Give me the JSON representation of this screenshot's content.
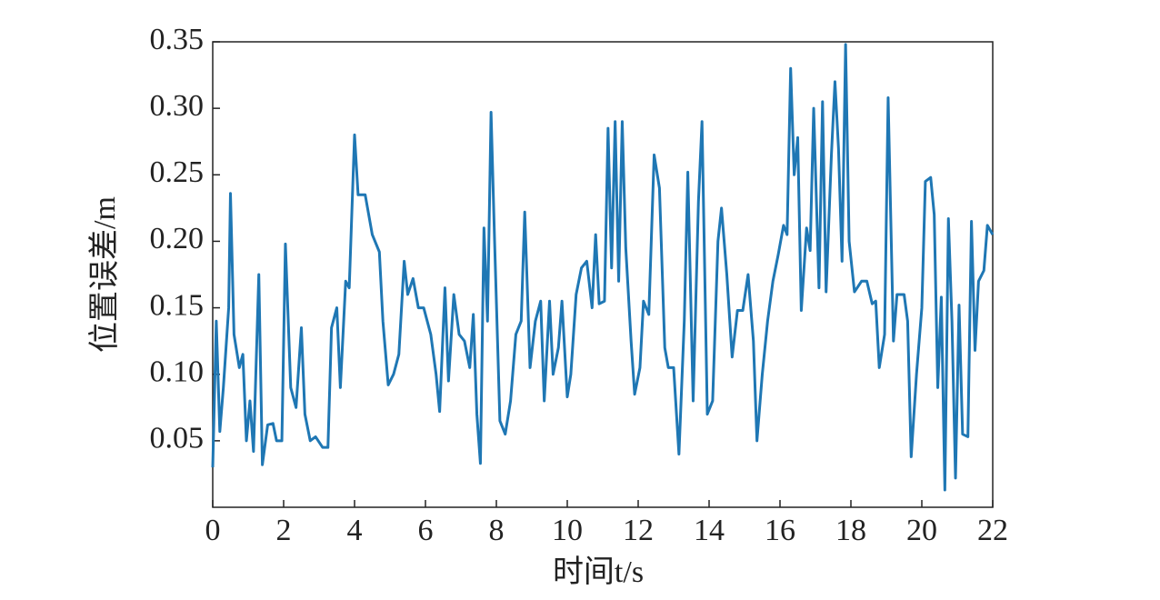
{
  "chart_data": {
    "type": "line",
    "x_label": "时间t/s",
    "y_label": "位置误差/m",
    "xlim": [
      0,
      22
    ],
    "xticks": [
      0,
      2,
      4,
      6,
      8,
      10,
      12,
      14,
      16,
      18,
      20,
      22
    ],
    "ylim": [
      0,
      0.35
    ],
    "yticks": [
      0.05,
      {
        "value": 0.1,
        "label": "0.10"
      },
      0.15,
      {
        "value": 0.2,
        "label": "0.20"
      },
      0.25,
      {
        "value": 0.3,
        "label": "0.30"
      },
      0.35
    ],
    "series": [
      {
        "color": "#1f77b4",
        "x": [
          0.0,
          0.1,
          0.2,
          0.3,
          0.45,
          0.5,
          0.6,
          0.75,
          0.85,
          0.95,
          1.05,
          1.15,
          1.3,
          1.4,
          1.55,
          1.7,
          1.8,
          1.95,
          2.05,
          2.2,
          2.35,
          2.5,
          2.6,
          2.75,
          2.9,
          3.1,
          3.25,
          3.35,
          3.5,
          3.6,
          3.75,
          3.85,
          4.0,
          4.1,
          4.3,
          4.5,
          4.7,
          4.8,
          4.95,
          5.1,
          5.25,
          5.4,
          5.5,
          5.65,
          5.8,
          5.95,
          6.15,
          6.3,
          6.4,
          6.55,
          6.65,
          6.8,
          6.95,
          7.1,
          7.25,
          7.35,
          7.45,
          7.55,
          7.65,
          7.75,
          7.85,
          7.95,
          8.1,
          8.25,
          8.4,
          8.55,
          8.7,
          8.8,
          8.95,
          9.1,
          9.25,
          9.35,
          9.5,
          9.6,
          9.75,
          9.85,
          10.0,
          10.1,
          10.25,
          10.4,
          10.55,
          10.7,
          10.8,
          10.9,
          11.05,
          11.15,
          11.25,
          11.35,
          11.45,
          11.55,
          11.65,
          11.8,
          11.9,
          12.05,
          12.15,
          12.3,
          12.45,
          12.6,
          12.75,
          12.85,
          13.0,
          13.15,
          13.3,
          13.4,
          13.55,
          13.7,
          13.8,
          13.95,
          14.1,
          14.25,
          14.35,
          14.5,
          14.65,
          14.8,
          14.95,
          15.1,
          15.25,
          15.35,
          15.5,
          15.65,
          15.8,
          15.95,
          16.1,
          16.2,
          16.3,
          16.4,
          16.5,
          16.6,
          16.75,
          16.85,
          16.95,
          17.1,
          17.2,
          17.3,
          17.45,
          17.55,
          17.65,
          17.75,
          17.85,
          17.95,
          18.1,
          18.3,
          18.45,
          18.6,
          18.7,
          18.8,
          18.95,
          19.05,
          19.2,
          19.3,
          19.5,
          19.6,
          19.7,
          19.85,
          20.0,
          20.1,
          20.25,
          20.35,
          20.45,
          20.55,
          20.65,
          20.75,
          20.85,
          20.95,
          21.05,
          21.15,
          21.3,
          21.4,
          21.5,
          21.6,
          21.75,
          21.85,
          22.0
        ],
        "values": [
          0.03,
          0.14,
          0.057,
          0.09,
          0.15,
          0.236,
          0.13,
          0.105,
          0.115,
          0.05,
          0.08,
          0.042,
          0.175,
          0.032,
          0.062,
          0.063,
          0.05,
          0.05,
          0.198,
          0.09,
          0.075,
          0.135,
          0.07,
          0.05,
          0.053,
          0.045,
          0.045,
          0.135,
          0.15,
          0.09,
          0.17,
          0.165,
          0.28,
          0.235,
          0.235,
          0.205,
          0.192,
          0.14,
          0.092,
          0.1,
          0.115,
          0.185,
          0.16,
          0.172,
          0.15,
          0.15,
          0.13,
          0.1,
          0.072,
          0.165,
          0.095,
          0.16,
          0.13,
          0.125,
          0.105,
          0.145,
          0.07,
          0.033,
          0.21,
          0.14,
          0.297,
          0.2,
          0.065,
          0.055,
          0.08,
          0.13,
          0.14,
          0.222,
          0.105,
          0.14,
          0.155,
          0.08,
          0.155,
          0.1,
          0.12,
          0.155,
          0.083,
          0.1,
          0.16,
          0.18,
          0.185,
          0.15,
          0.205,
          0.153,
          0.155,
          0.285,
          0.18,
          0.29,
          0.17,
          0.29,
          0.195,
          0.125,
          0.085,
          0.105,
          0.155,
          0.145,
          0.265,
          0.24,
          0.12,
          0.105,
          0.105,
          0.04,
          0.14,
          0.252,
          0.08,
          0.23,
          0.29,
          0.07,
          0.08,
          0.2,
          0.225,
          0.175,
          0.113,
          0.148,
          0.148,
          0.175,
          0.125,
          0.05,
          0.1,
          0.14,
          0.17,
          0.19,
          0.212,
          0.205,
          0.33,
          0.25,
          0.278,
          0.148,
          0.21,
          0.193,
          0.3,
          0.165,
          0.305,
          0.162,
          0.265,
          0.32,
          0.27,
          0.185,
          0.348,
          0.2,
          0.162,
          0.17,
          0.17,
          0.153,
          0.155,
          0.105,
          0.13,
          0.308,
          0.125,
          0.16,
          0.16,
          0.14,
          0.038,
          0.1,
          0.15,
          0.245,
          0.248,
          0.22,
          0.09,
          0.158,
          0.013,
          0.217,
          0.14,
          0.022,
          0.152,
          0.055,
          0.053,
          0.215,
          0.118,
          0.17,
          0.178,
          0.212,
          0.205
        ]
      }
    ]
  }
}
